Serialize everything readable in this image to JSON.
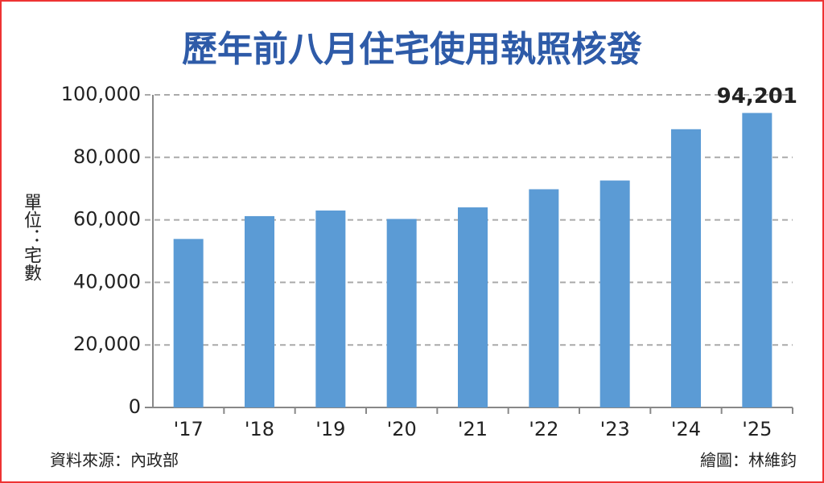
{
  "chart_data": {
    "type": "bar",
    "title": "歷年前八月住宅使用執照核發",
    "y_axis_label": "單位：宅數",
    "source": "資料來源：內政部",
    "credit": "繪圖：林維鈞",
    "categories": [
      "'17",
      "'18",
      "'19",
      "'20",
      "'21",
      "'22",
      "'23",
      "'24",
      "'25"
    ],
    "values": [
      53900,
      61200,
      63000,
      60300,
      64000,
      69800,
      72600,
      89000,
      94201
    ],
    "value_labels": [
      null,
      null,
      null,
      null,
      null,
      null,
      null,
      null,
      "94,201"
    ],
    "color": "#5b9bd5",
    "ylim": [
      0,
      100000
    ],
    "yticks": [
      0,
      {
        "value": 20000,
        "label": "20,000"
      },
      {
        "value": 40000,
        "label": "40,000"
      },
      {
        "value": 60000,
        "label": "60,000"
      },
      {
        "value": 80000,
        "label": "80,000"
      },
      {
        "value": 100000,
        "label": "100,000"
      }
    ],
    "grid": true
  }
}
